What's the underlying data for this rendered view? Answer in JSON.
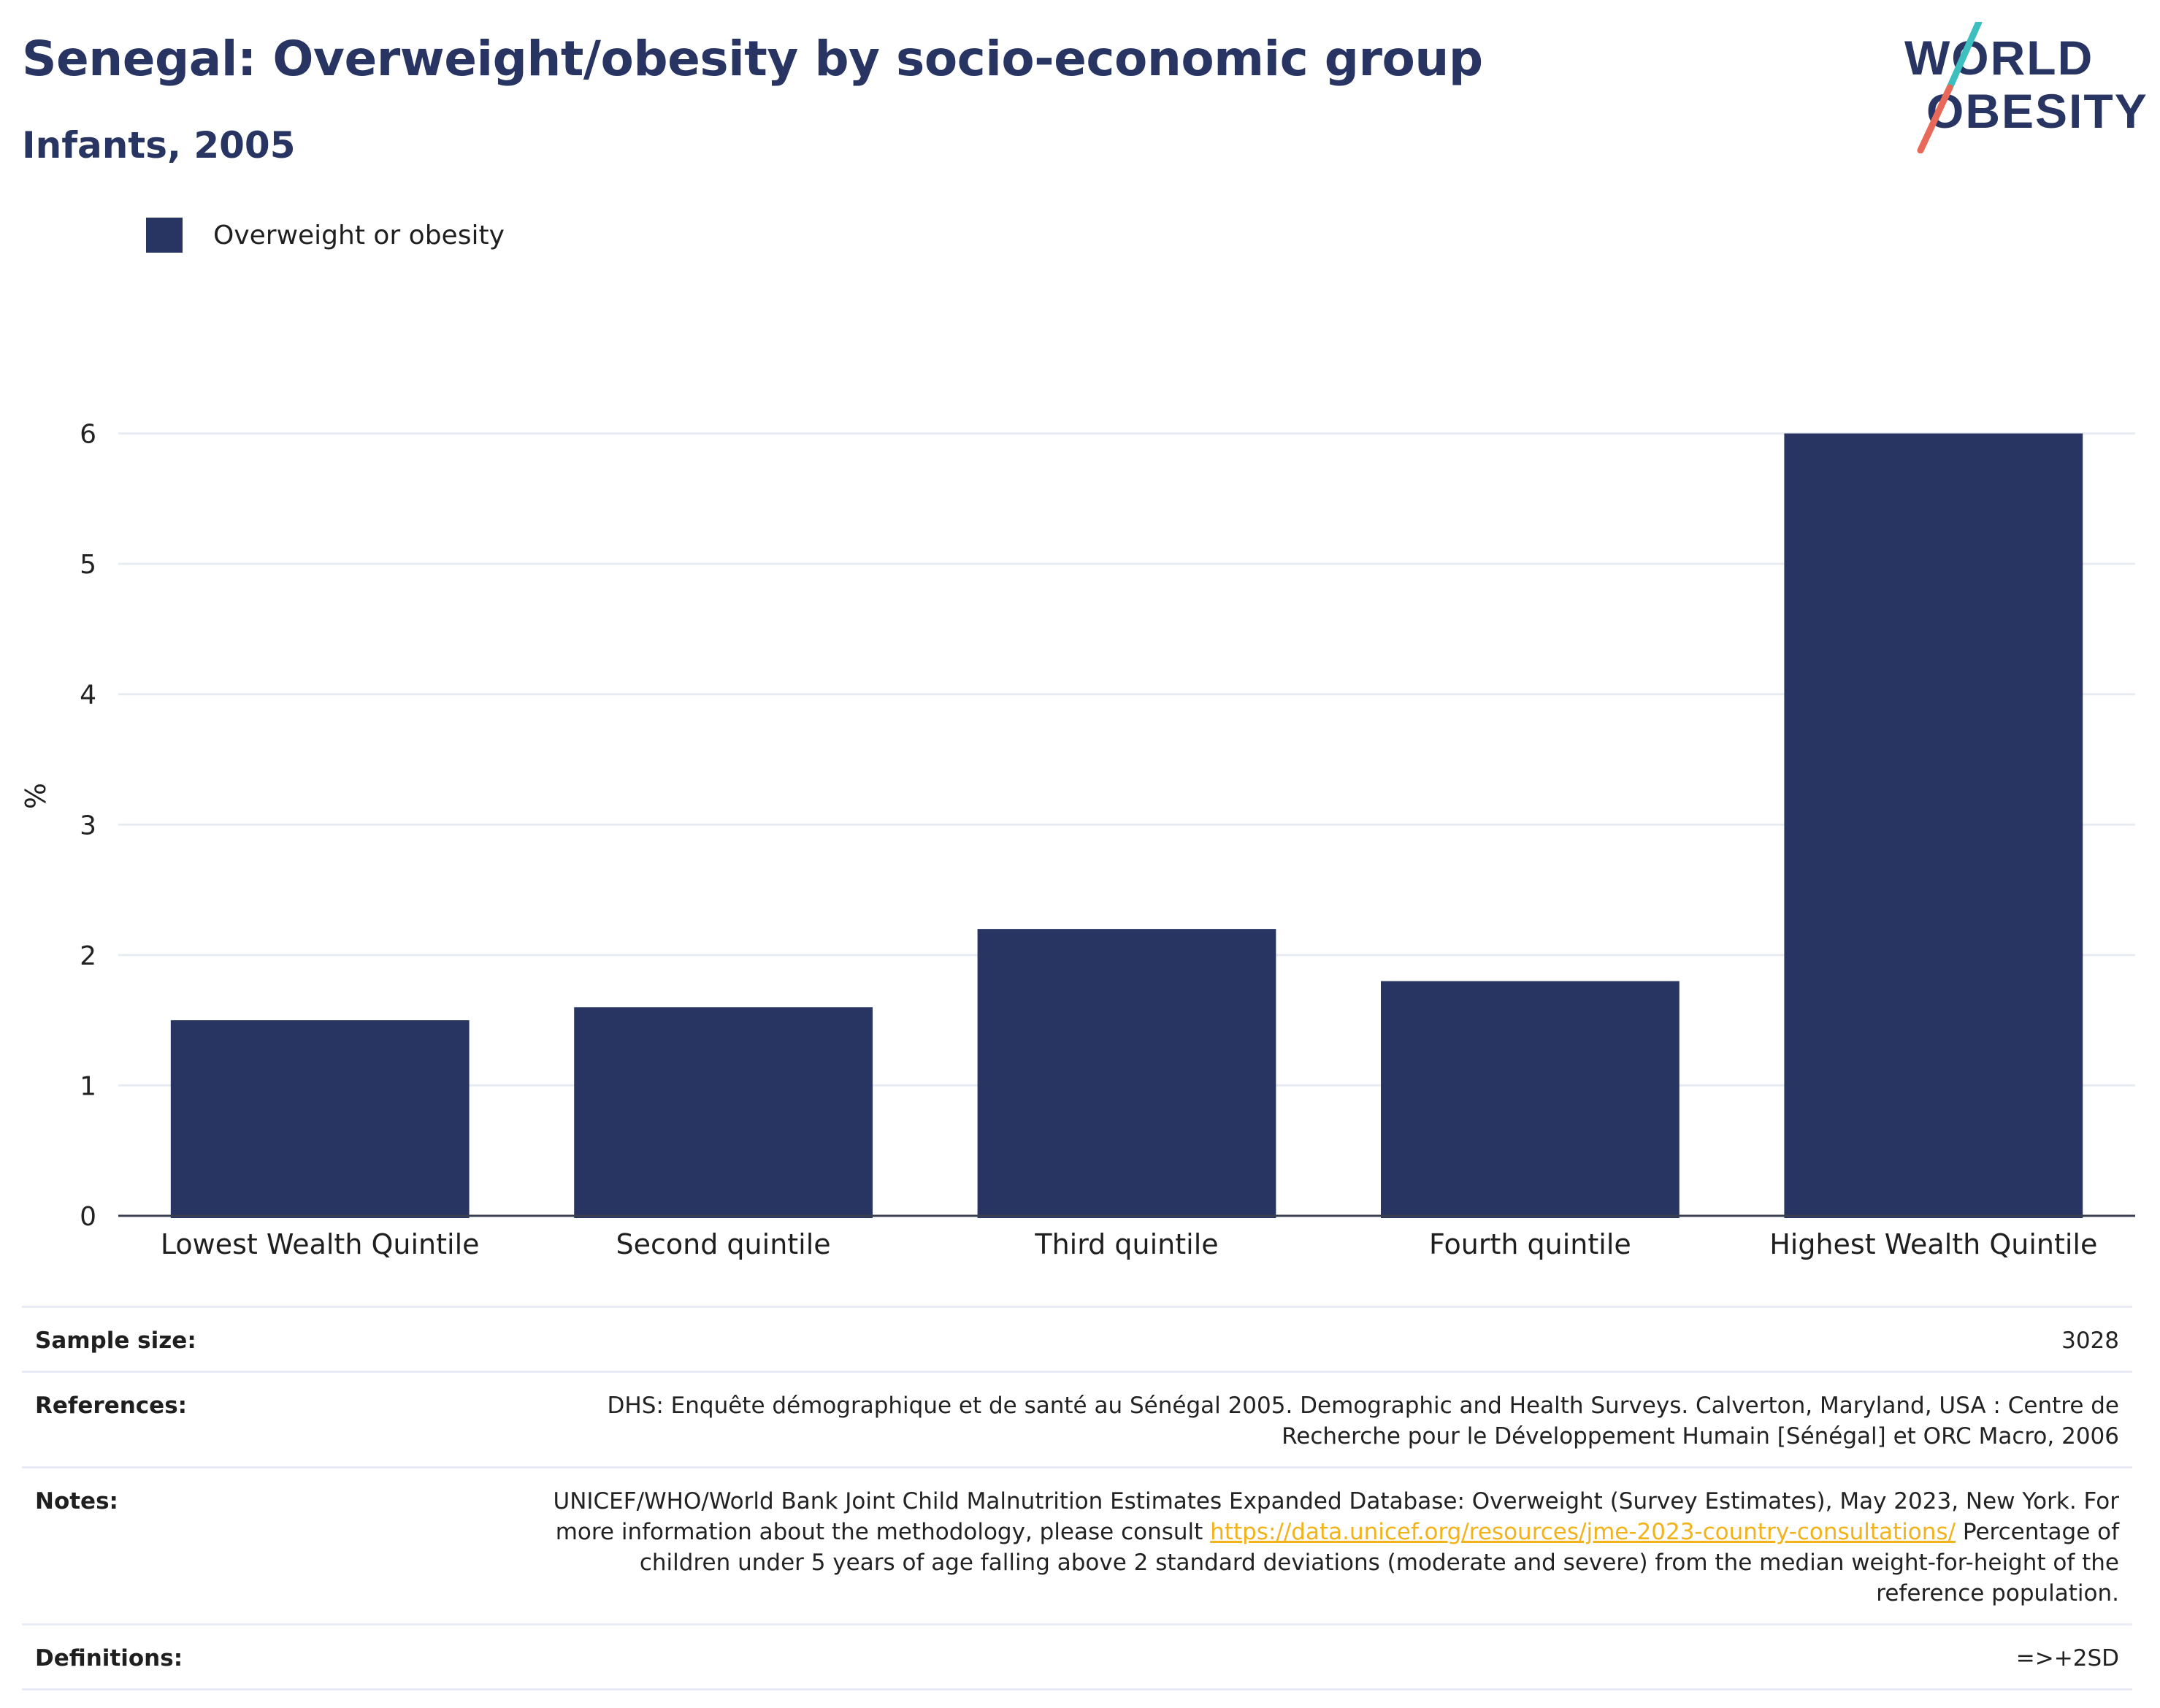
{
  "header": {
    "title": "Senegal: Overweight/obesity by socio-economic group",
    "subtitle": "Infants, 2005"
  },
  "logo": {
    "line1": "WORLD",
    "line2": "OBESITY",
    "colors": {
      "text": "#283562",
      "slash_top": "#3ebfbf",
      "slash_bottom": "#e8685a"
    }
  },
  "legend": {
    "label": "Overweight or obesity",
    "color": "#283562"
  },
  "chart_data": {
    "type": "bar",
    "categories": [
      "Lowest Wealth Quintile",
      "Second quintile",
      "Third quintile",
      "Fourth quintile",
      "Highest Wealth Quintile"
    ],
    "series": [
      {
        "name": "Overweight or obesity",
        "values": [
          1.5,
          1.6,
          2.2,
          1.8,
          6.0
        ],
        "color": "#283562"
      }
    ],
    "ylabel": "%",
    "xlabel": "",
    "ylim": [
      0,
      6.3
    ],
    "yticks": [
      0,
      1,
      2,
      3,
      4,
      5,
      6
    ],
    "grid": true,
    "legend_position": "top-left"
  },
  "info": {
    "sample_size": {
      "key": "Sample size:",
      "value": "3028"
    },
    "references": {
      "key": "References:",
      "value": "DHS: Enquête démographique et de santé au Sénégal 2005. Demographic and Health Surveys. Calverton, Maryland, USA : Centre de Recherche pour le Développement Humain [Sénégal] et ORC Macro, 2006"
    },
    "notes": {
      "key": "Notes:",
      "text1": "UNICEF/WHO/World Bank Joint Child Malnutrition Estimates Expanded Database: Overweight (Survey Estimates), May 2023, New York. For more information about the methodology, please consult ",
      "link": "https://data.unicef.org/resources/jme-2023-country-consultations/",
      "text2": " Percentage of children under 5 years of age falling above 2 standard deviations (moderate and severe) from the median weight-for-height of the reference population."
    },
    "definitions": {
      "key": "Definitions:",
      "value": "=>+2SD"
    }
  }
}
